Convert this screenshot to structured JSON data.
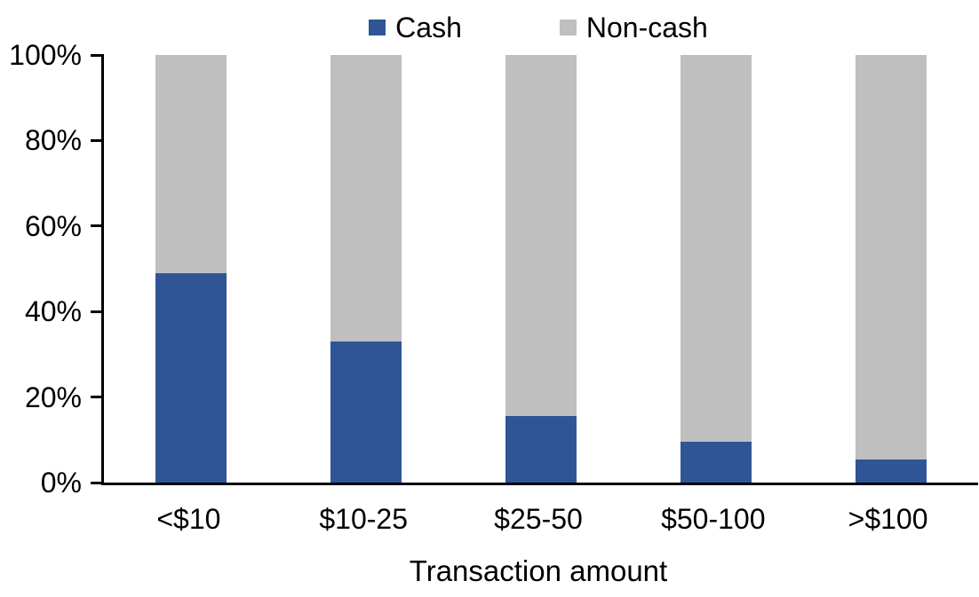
{
  "colors": {
    "cash": "#2F5596",
    "noncash": "#BFBFBF",
    "axis": "#000000",
    "background": "#FFFFFF",
    "text": "#000000"
  },
  "legend": {
    "cash_label": "Cash",
    "noncash_label": "Non-cash"
  },
  "yaxis": {
    "ticks": [
      "100%",
      "80%",
      "60%",
      "40%",
      "20%",
      "0%"
    ]
  },
  "xaxis": {
    "title": "Transaction amount"
  },
  "chart_data": {
    "type": "bar",
    "stacked": true,
    "title": "",
    "xlabel": "Transaction amount",
    "ylabel": "",
    "ylim": [
      0,
      100
    ],
    "ytick_format": "percent",
    "yticks": [
      "0%",
      "20%",
      "40%",
      "60%",
      "80%",
      "100%"
    ],
    "grid": false,
    "legend_position": "top-center",
    "categories": [
      "<$10",
      "$10-25",
      "$25-50",
      "$50-100",
      ">$100"
    ],
    "series": [
      {
        "name": "Cash",
        "color": "#2F5596",
        "values": [
          49,
          33,
          15.5,
          9.5,
          5.5
        ]
      },
      {
        "name": "Non-cash",
        "color": "#BFBFBF",
        "values": [
          51,
          67,
          84.5,
          90.5,
          94.5
        ]
      }
    ]
  }
}
